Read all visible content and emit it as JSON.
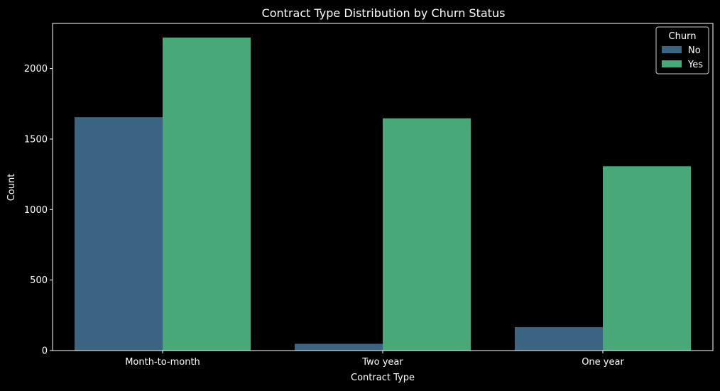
{
  "chart_data": {
    "type": "bar",
    "title": "Contract Type Distribution by Churn Status",
    "xlabel": "Contract Type",
    "ylabel": "Count",
    "categories": [
      "Month-to-month",
      "Two year",
      "One year"
    ],
    "series": [
      {
        "name": "No",
        "values": [
          1655,
          48,
          166
        ],
        "color": "#3b6482"
      },
      {
        "name": "Yes",
        "values": [
          2220,
          1647,
          1307
        ],
        "color": "#48a878"
      }
    ],
    "ylim": [
      0,
      2320
    ],
    "yticks": [
      0,
      500,
      1000,
      1500,
      2000
    ],
    "legend": {
      "title": "Churn",
      "position": "top-right"
    },
    "grid": false,
    "background": "#000000",
    "axis_color": "#ffffff"
  }
}
